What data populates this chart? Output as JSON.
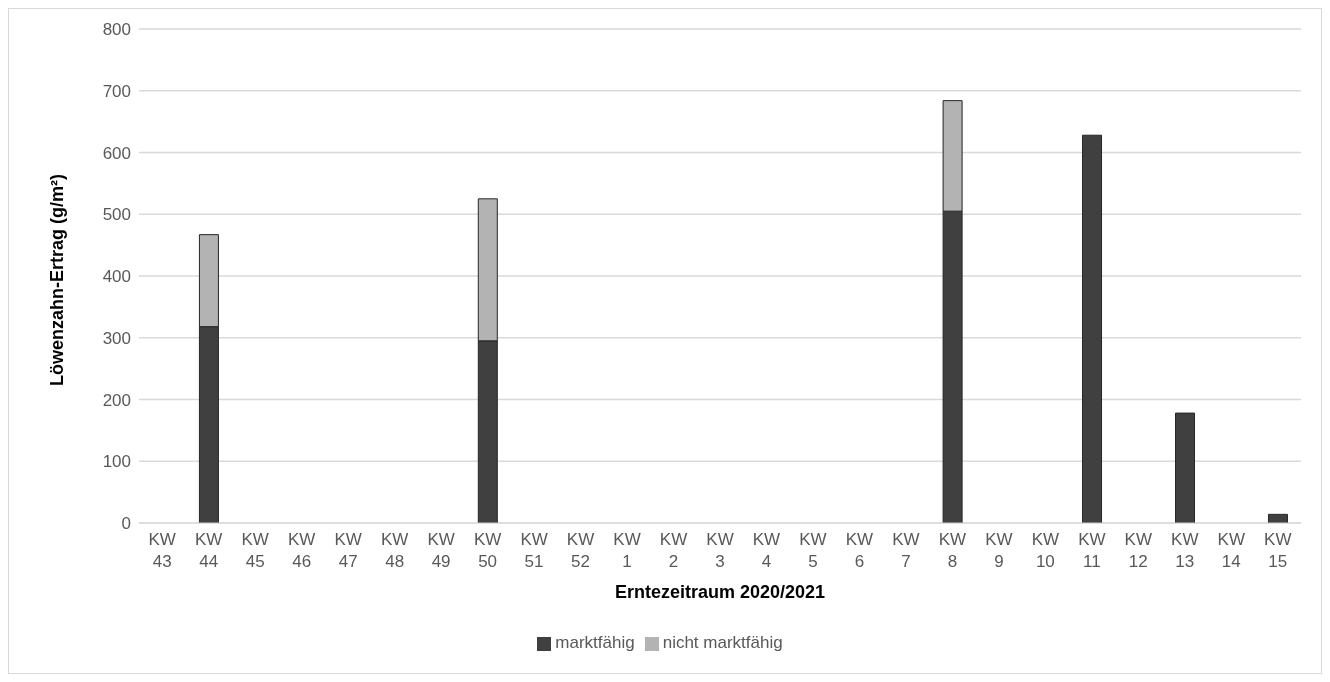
{
  "chart_data": {
    "type": "bar",
    "stacked": true,
    "xlabel": "Erntezeitraum 2020/2021",
    "ylabel": "Löwenzahn-Ertrag (g/m²)",
    "categories": [
      "KW 43",
      "KW 44",
      "KW 45",
      "KW 46",
      "KW 47",
      "KW 48",
      "KW 49",
      "KW 50",
      "KW 51",
      "KW 52",
      "KW 1",
      "KW 2",
      "KW 3",
      "KW 4",
      "KW 5",
      "KW 6",
      "KW 7",
      "KW 8",
      "KW 9",
      "KW 10",
      "KW 11",
      "KW 12",
      "KW 13",
      "KW 14",
      "KW 15"
    ],
    "series": [
      {
        "name": "marktfähig",
        "color": "#404040",
        "values": [
          null,
          318,
          null,
          null,
          null,
          null,
          null,
          295,
          null,
          null,
          null,
          null,
          null,
          null,
          null,
          null,
          null,
          505,
          null,
          null,
          628,
          null,
          178,
          null,
          14
        ]
      },
      {
        "name": "nicht marktfähig",
        "color": "#b3b3b3",
        "values": [
          null,
          149,
          null,
          null,
          null,
          null,
          null,
          230,
          null,
          null,
          null,
          null,
          null,
          null,
          null,
          null,
          null,
          179,
          null,
          null,
          null,
          null,
          null,
          null,
          null
        ]
      }
    ],
    "ylim": [
      0,
      800
    ],
    "yticks": [
      0,
      100,
      200,
      300,
      400,
      500,
      600,
      700,
      800
    ],
    "grid": "y",
    "legend": "bottom"
  }
}
